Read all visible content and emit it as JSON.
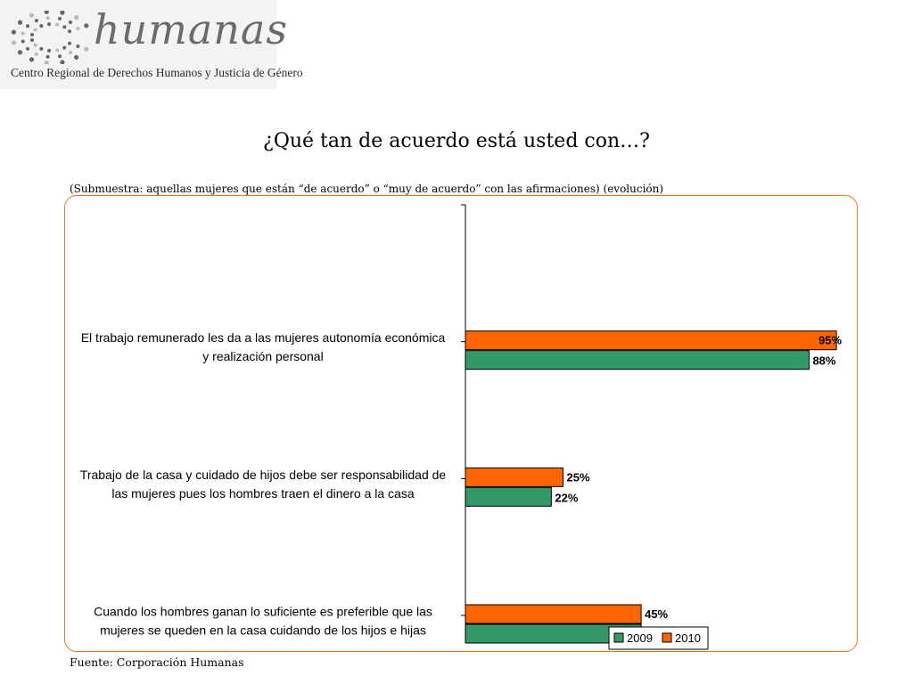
{
  "logo": {
    "name": "humanas",
    "subtitle": "Centro Regional de Derechos Humanos y Justicia de Género",
    "colors": {
      "dots": "#666666",
      "accent": "#b9b9b9"
    }
  },
  "header": {
    "title": "¿Qué tan de acuerdo está usted con…?",
    "subtitle": "(Submuestra: aquellas mujeres que están “de acuerdo” o “muy de acuerdo” con las afirmaciones) (evolución)"
  },
  "footer": {
    "source": "Fuente: Corporación Humanas"
  },
  "chart_data": {
    "type": "bar",
    "orientation": "horizontal",
    "categories": [
      [
        "El trabajo remunerado les da a las mujeres autonomía económica",
        "y realización personal"
      ],
      [
        "Trabajo de la casa y cuidado de hijos debe ser responsabilidad de",
        "las mujeres pues los hombres traen el dinero a la casa"
      ],
      [
        "Cuando los hombres ganan lo suficiente es preferible que las",
        "mujeres se queden en la casa cuidando de los hijos e hijas"
      ]
    ],
    "series": [
      {
        "name": "2009",
        "values": [
          88,
          22,
          45
        ],
        "labels": [
          "88%",
          "22%",
          "45%"
        ],
        "color": "#339966"
      },
      {
        "name": "2010",
        "values": [
          95,
          25,
          45
        ],
        "labels": [
          "95%",
          "25%",
          "45%"
        ],
        "color": "#ff6600"
      }
    ],
    "xlim": [
      0,
      100
    ],
    "legend_position": "bottom-right",
    "grid": false,
    "frame_color": "#e9732b"
  }
}
